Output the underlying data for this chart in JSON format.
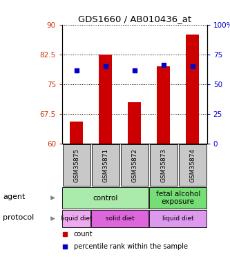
{
  "title": "GDS1660 / AB010436_at",
  "samples": [
    "GSM35875",
    "GSM35871",
    "GSM35872",
    "GSM35873",
    "GSM35874"
  ],
  "bar_values": [
    65.5,
    82.5,
    70.5,
    79.5,
    87.5
  ],
  "bar_bottom": 60,
  "percentile_values": [
    78.5,
    79.5,
    78.5,
    79.8,
    79.5
  ],
  "bar_color": "#cc0000",
  "percentile_color": "#0000cc",
  "ylim_left": [
    60,
    90
  ],
  "ylim_right": [
    0,
    100
  ],
  "yticks_left": [
    60,
    67.5,
    75,
    82.5,
    90
  ],
  "yticks_right": [
    0,
    25,
    50,
    75,
    100
  ],
  "ytick_labels_left": [
    "60",
    "67.5",
    "75",
    "82.5",
    "90"
  ],
  "ytick_labels_right": [
    "0",
    "25",
    "50",
    "75",
    "100%"
  ],
  "left_tick_color": "#cc3300",
  "right_tick_color": "#0000cc",
  "agent_labels": [
    {
      "text": "control",
      "start": 0,
      "end": 3,
      "color": "#aaeaaa"
    },
    {
      "text": "fetal alcohol\nexposure",
      "start": 3,
      "end": 5,
      "color": "#77dd77"
    }
  ],
  "protocol_labels": [
    {
      "text": "liquid diet",
      "start": 0,
      "end": 1,
      "color": "#eeaaee"
    },
    {
      "text": "solid diet",
      "start": 1,
      "end": 3,
      "color": "#dd66dd"
    },
    {
      "text": "liquid diet",
      "start": 3,
      "end": 5,
      "color": "#dd99ee"
    }
  ],
  "legend_items": [
    {
      "color": "#cc0000",
      "label": "count"
    },
    {
      "color": "#0000cc",
      "label": "percentile rank within the sample"
    }
  ],
  "sample_bg_color": "#c8c8c8",
  "grid_color": "#555555"
}
